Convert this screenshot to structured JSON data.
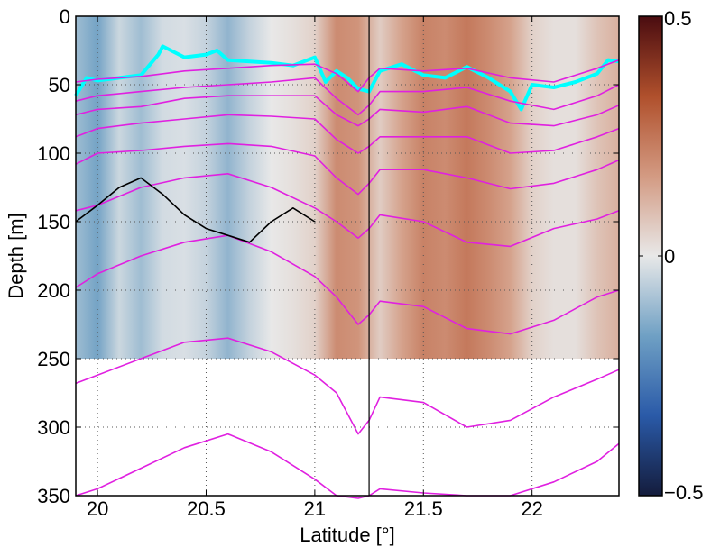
{
  "chart_data": {
    "type": "heatmap",
    "xlabel": "Latitude [°]",
    "ylabel": "Depth [m]",
    "xlim": [
      19.9,
      22.4
    ],
    "ylim": [
      0,
      350
    ],
    "y_reversed": true,
    "grid": true,
    "x_ticks": [
      20,
      20.5,
      21,
      21.5,
      22
    ],
    "x_tick_labels": [
      "20",
      "20.5",
      "21",
      "21.5",
      "22"
    ],
    "y_ticks": [
      0,
      50,
      100,
      150,
      200,
      250,
      300,
      350
    ],
    "y_tick_labels": [
      "0",
      "50",
      "100",
      "150",
      "200",
      "250",
      "300",
      "350"
    ],
    "field_depth_limit": 250,
    "vertical_line_x": 21.25,
    "colorbar": {
      "range": [
        -0.5,
        0.5
      ],
      "tick_values": [
        0.5,
        0,
        -0.5
      ],
      "tick_labels": [
        "0.5",
        "0",
        "−0.5"
      ],
      "colors_low_to_high": [
        "#141c3c",
        "#2a5aa8",
        "#6fa0c4",
        "#e8e8e8",
        "#d39a82",
        "#b0502c",
        "#4a0c10"
      ]
    },
    "field_columns": {
      "latitude": [
        19.9,
        20.0,
        20.1,
        20.2,
        20.3,
        20.4,
        20.5,
        20.6,
        20.7,
        20.8,
        20.9,
        21.0,
        21.1,
        21.2,
        21.3,
        21.4,
        21.5,
        21.6,
        21.7,
        21.8,
        21.9,
        22.0,
        22.1,
        22.2,
        22.3,
        22.4
      ],
      "value": [
        -0.1,
        -0.16,
        -0.04,
        -0.1,
        -0.03,
        -0.02,
        -0.05,
        -0.12,
        -0.05,
        0.0,
        0.02,
        0.05,
        0.2,
        0.18,
        0.06,
        0.15,
        0.22,
        0.2,
        0.24,
        0.2,
        0.15,
        0.05,
        0.02,
        0.02,
        0.08,
        0.12
      ]
    },
    "series": [
      {
        "color": "#00ffff",
        "x": [
          19.9,
          19.95,
          20.0,
          20.1,
          20.2,
          20.28,
          20.3,
          20.4,
          20.5,
          20.55,
          20.6,
          20.7,
          20.8,
          20.9,
          21.0,
          21.05,
          21.1,
          21.15,
          21.2,
          21.25,
          21.3,
          21.4,
          21.5,
          21.6,
          21.7,
          21.8,
          21.9,
          21.95,
          22.0,
          22.1,
          22.2,
          22.3,
          22.35,
          22.4
        ],
        "y": [
          58,
          45,
          47,
          45,
          43,
          28,
          22,
          30,
          28,
          25,
          32,
          33,
          34,
          36,
          30,
          48,
          40,
          45,
          53,
          55,
          40,
          35,
          43,
          45,
          37,
          45,
          55,
          68,
          50,
          52,
          48,
          42,
          32,
          33
        ]
      },
      {
        "color": "#e020e0",
        "x": [
          19.9,
          20.0,
          20.2,
          20.4,
          20.6,
          20.8,
          21.0,
          21.1,
          21.2,
          21.25,
          21.3,
          21.5,
          21.7,
          21.9,
          22.1,
          22.3,
          22.4
        ],
        "y": [
          48,
          46,
          44,
          40,
          38,
          36,
          35,
          42,
          55,
          45,
          38,
          40,
          38,
          45,
          48,
          38,
          32
        ]
      },
      {
        "color": "#e020e0",
        "x": [
          19.9,
          20.0,
          20.2,
          20.4,
          20.6,
          20.8,
          21.0,
          21.1,
          21.2,
          21.25,
          21.3,
          21.5,
          21.7,
          21.9,
          22.1,
          22.3,
          22.4
        ],
        "y": [
          62,
          58,
          55,
          52,
          50,
          48,
          45,
          60,
          72,
          65,
          55,
          55,
          52,
          62,
          68,
          58,
          50
        ]
      },
      {
        "color": "#e020e0",
        "x": [
          19.9,
          20.0,
          20.2,
          20.4,
          20.6,
          20.8,
          21.0,
          21.1,
          21.2,
          21.25,
          21.3,
          21.5,
          21.7,
          21.9,
          22.1,
          22.3,
          22.4
        ],
        "y": [
          72,
          68,
          66,
          60,
          58,
          58,
          58,
          72,
          80,
          75,
          68,
          70,
          66,
          78,
          80,
          72,
          65
        ]
      },
      {
        "color": "#e020e0",
        "x": [
          19.9,
          20.0,
          20.2,
          20.4,
          20.6,
          20.8,
          21.0,
          21.1,
          21.2,
          21.25,
          21.3,
          21.5,
          21.7,
          21.9,
          22.1,
          22.3,
          22.4
        ],
        "y": [
          88,
          82,
          78,
          75,
          72,
          73,
          75,
          90,
          100,
          95,
          88,
          88,
          88,
          100,
          98,
          88,
          82
        ]
      },
      {
        "color": "#e020e0",
        "x": [
          19.9,
          20.0,
          20.2,
          20.4,
          20.6,
          20.8,
          21.0,
          21.1,
          21.2,
          21.25,
          21.3,
          21.5,
          21.7,
          21.9,
          22.1,
          22.3,
          22.4
        ],
        "y": [
          108,
          100,
          98,
          95,
          93,
          95,
          102,
          118,
          130,
          122,
          112,
          112,
          118,
          126,
          122,
          112,
          105
        ]
      },
      {
        "color": "#e020e0",
        "x": [
          19.9,
          20.0,
          20.2,
          20.4,
          20.6,
          20.8,
          21.0,
          21.1,
          21.2,
          21.25,
          21.3,
          21.5,
          21.7,
          21.9,
          22.1,
          22.3,
          22.4
        ],
        "y": [
          142,
          138,
          125,
          118,
          115,
          125,
          140,
          150,
          162,
          155,
          145,
          150,
          165,
          168,
          155,
          148,
          142
        ]
      },
      {
        "color": "#e020e0",
        "x": [
          19.9,
          20.0,
          20.2,
          20.4,
          20.6,
          20.8,
          21.0,
          21.1,
          21.2,
          21.25,
          21.3,
          21.5,
          21.7,
          21.9,
          22.1,
          22.3,
          22.4
        ],
        "y": [
          198,
          188,
          175,
          165,
          160,
          172,
          190,
          205,
          225,
          218,
          208,
          212,
          228,
          232,
          222,
          205,
          200
        ]
      },
      {
        "color": "#e020e0",
        "x": [
          19.9,
          20.0,
          20.2,
          20.4,
          20.6,
          20.8,
          21.0,
          21.1,
          21.2,
          21.25,
          21.3,
          21.5,
          21.7,
          21.9,
          22.1,
          22.3,
          22.4
        ],
        "y": [
          268,
          262,
          250,
          238,
          235,
          245,
          262,
          275,
          305,
          295,
          278,
          282,
          300,
          295,
          278,
          265,
          258
        ]
      },
      {
        "color": "#e020e0",
        "x": [
          19.9,
          20.0,
          20.2,
          20.4,
          20.6,
          20.8,
          21.0,
          21.1,
          21.2,
          21.25,
          21.3,
          21.5,
          21.7,
          21.9,
          22.1,
          22.3,
          22.4
        ],
        "y": [
          350,
          345,
          330,
          315,
          305,
          318,
          338,
          350,
          352,
          350,
          345,
          348,
          350,
          350,
          340,
          325,
          312
        ]
      },
      {
        "color": "#000000",
        "x": [
          19.9,
          20.0,
          20.1,
          20.2,
          20.3,
          20.4,
          20.5,
          20.6,
          20.7,
          20.8,
          20.9,
          21.0
        ],
        "y": [
          150,
          138,
          125,
          118,
          130,
          145,
          155,
          160,
          165,
          150,
          140,
          150
        ]
      }
    ]
  }
}
